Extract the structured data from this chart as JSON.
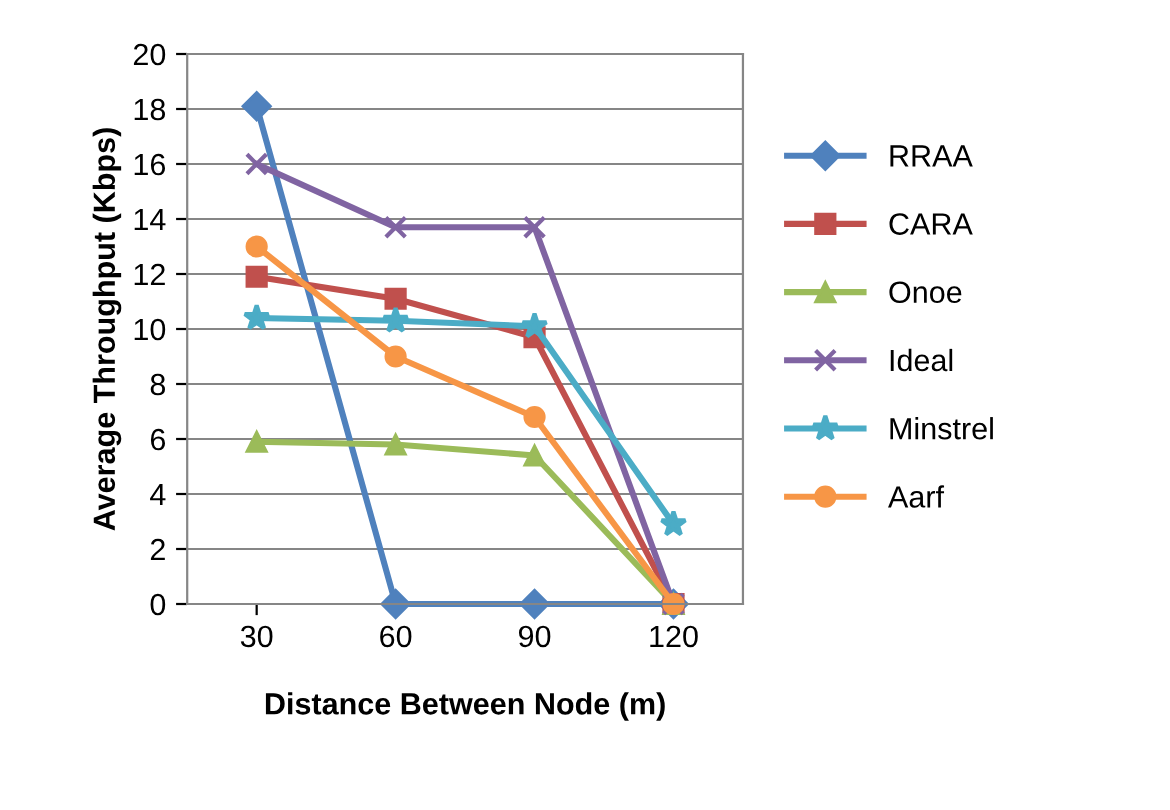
{
  "chart_data": {
    "type": "line",
    "xlabel": "Distance Between Node (m)",
    "ylabel": "Average Throughput (Kbps)",
    "categories": [
      "30",
      "60",
      "90",
      "120"
    ],
    "series": [
      {
        "name": "RRAA",
        "color": "#4f81bd",
        "marker": "diamond",
        "values": [
          18.1,
          0,
          0,
          0
        ]
      },
      {
        "name": "CARA",
        "color": "#c0504d",
        "marker": "square",
        "values": [
          11.9,
          11.1,
          9.7,
          0
        ]
      },
      {
        "name": "Onoe",
        "color": "#9bbb59",
        "marker": "triangle",
        "values": [
          5.9,
          5.8,
          5.4,
          0
        ]
      },
      {
        "name": "Ideal",
        "color": "#8064a2",
        "marker": "cross",
        "values": [
          16,
          13.7,
          13.7,
          0
        ]
      },
      {
        "name": "Minstrel",
        "color": "#4bacc6",
        "marker": "star",
        "values": [
          10.4,
          10.3,
          10.1,
          2.9
        ]
      },
      {
        "name": "Aarf",
        "color": "#f79646",
        "marker": "circle",
        "values": [
          13,
          9,
          6.8,
          0
        ]
      }
    ],
    "ylim": [
      0,
      20
    ],
    "yticks": [
      0,
      2,
      4,
      6,
      8,
      10,
      12,
      14,
      16,
      18,
      20
    ],
    "grid": "y",
    "legend": "right",
    "line_style": "solid"
  }
}
